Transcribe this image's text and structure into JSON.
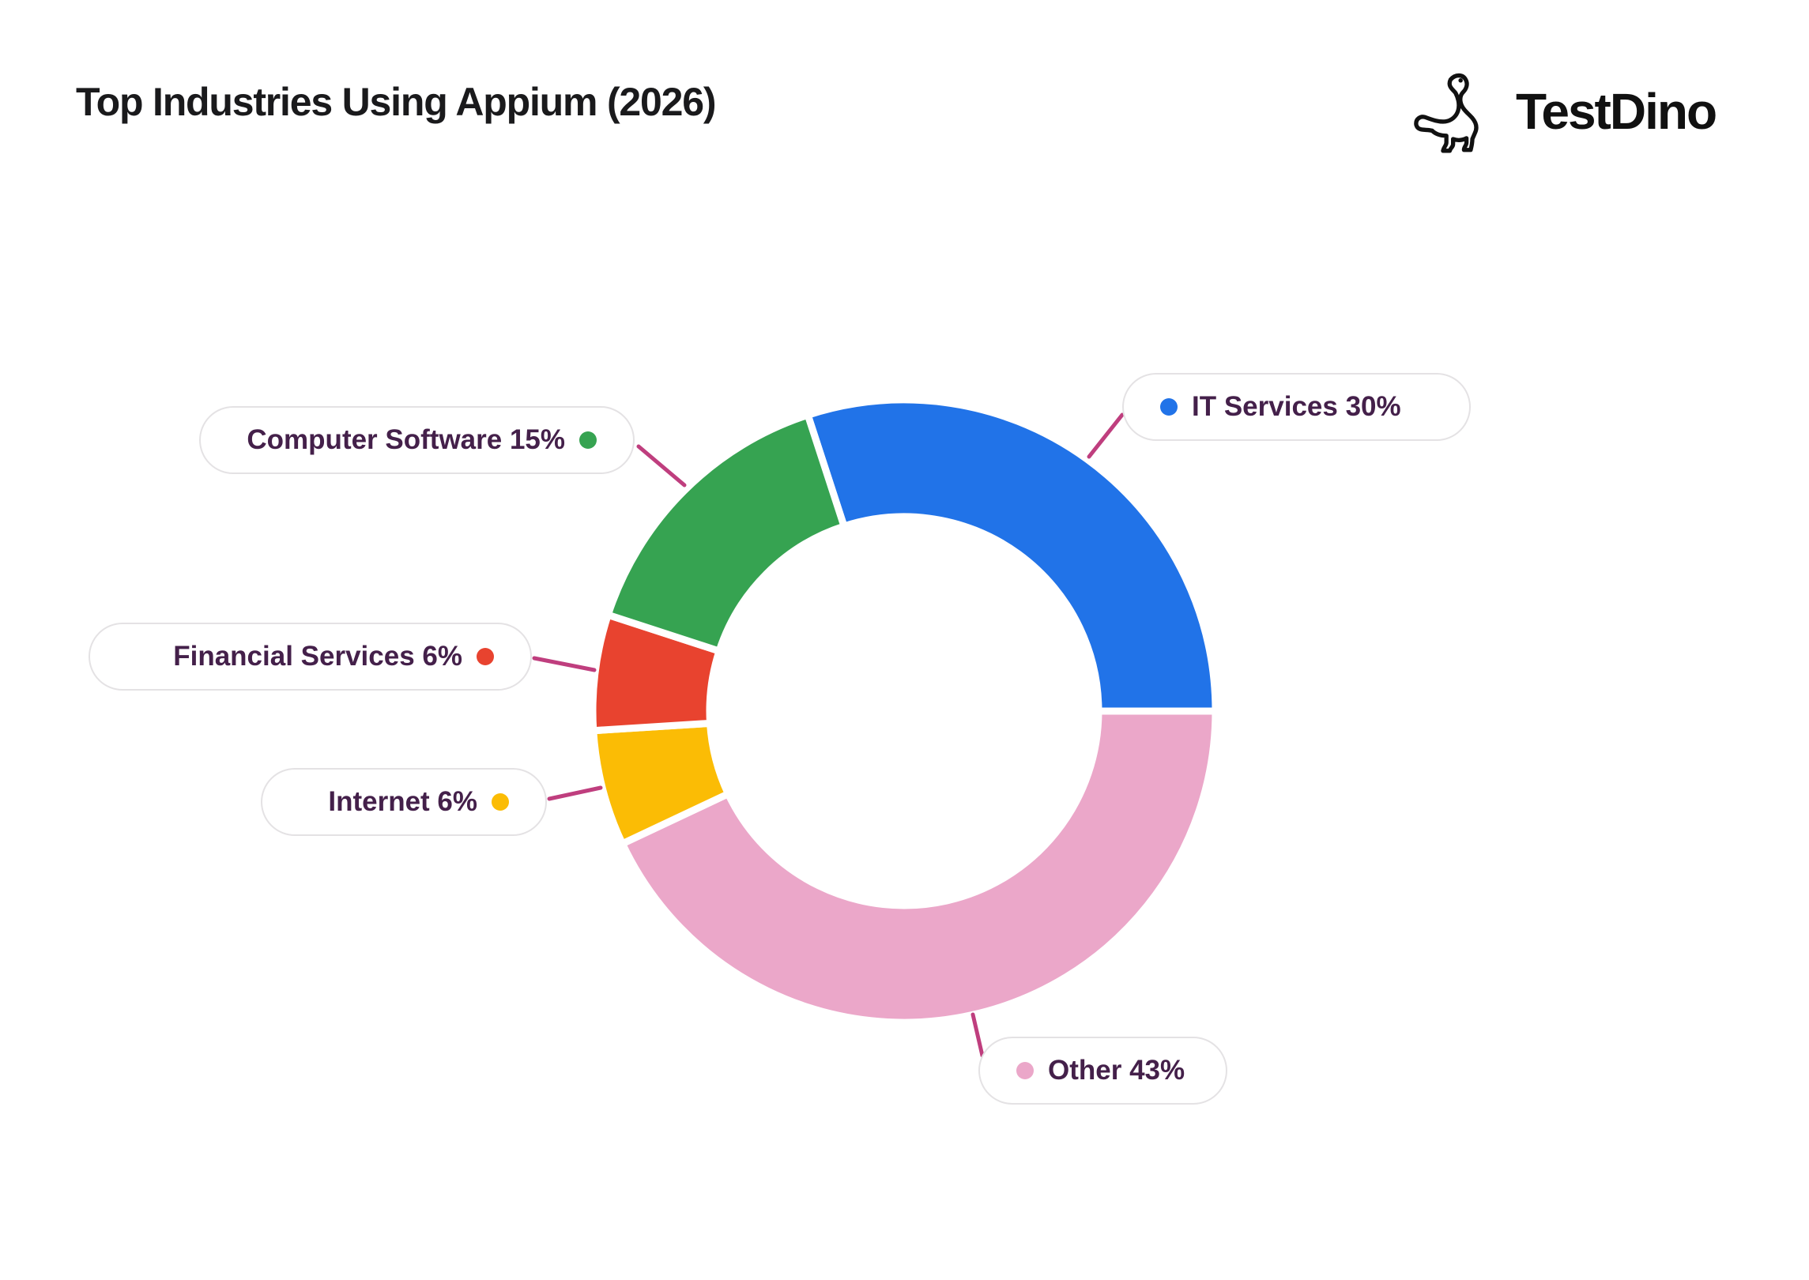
{
  "header": {
    "title": "Top Industries Using Appium (2026)"
  },
  "logo": {
    "text": "TestDino",
    "icon": "dino-icon"
  },
  "chart_data": {
    "type": "pie",
    "variant": "donut",
    "title": "Top Industries Using Appium (2026)",
    "unit": "%",
    "rotation_deg": -18,
    "slices": [
      {
        "label": "IT Services",
        "value": 30,
        "color": "#2173e8"
      },
      {
        "label": "Other",
        "value": 43,
        "color": "#eba7c9"
      },
      {
        "label": "Internet",
        "value": 6,
        "color": "#fbbc05"
      },
      {
        "label": "Financial Services",
        "value": 6,
        "color": "#e8432f"
      },
      {
        "label": "Computer Software",
        "value": 15,
        "color": "#36a351"
      }
    ],
    "legend_position": "callout-pills-around-chart",
    "connector_color": "#bf3e7e",
    "gap_color": "#ffffff",
    "grid": false
  },
  "pills": [
    {
      "text": "Computer Software 15%",
      "slice": "Computer Software",
      "color": "#36a351",
      "dot_side": "right"
    },
    {
      "text": "Financial Services 6%",
      "slice": "Financial Services",
      "color": "#e8432f",
      "dot_side": "right"
    },
    {
      "text": "Internet 6%",
      "slice": "Internet",
      "color": "#fbbc05",
      "dot_side": "right"
    },
    {
      "text": "IT Services 30%",
      "slice": "IT Services",
      "color": "#2173e8",
      "dot_side": "left"
    },
    {
      "text": "Other 43%",
      "slice": "Other",
      "color": "#eba7c9",
      "dot_side": "left"
    }
  ],
  "colors": {
    "title_text": "#1a1a1c",
    "pill_text": "#44204a",
    "pill_border": "#e4e2e4",
    "background": "#ffffff",
    "logo": "#111111"
  }
}
